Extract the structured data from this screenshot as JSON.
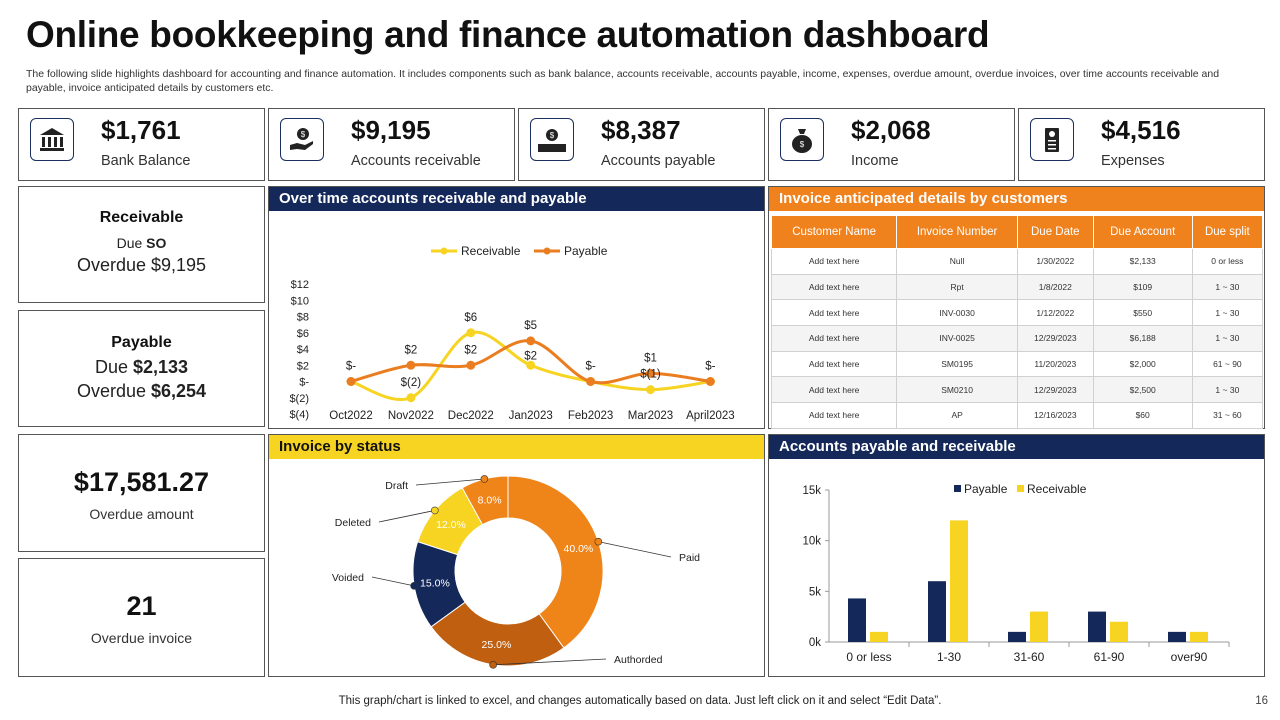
{
  "header": {
    "title": "Online bookkeeping and finance automation dashboard",
    "subtitle": "The following slide highlights dashboard for accounting and finance automation. It includes components such as bank balance, accounts receivable, accounts payable, income, expenses, overdue amount, overdue invoices, over time accounts receivable and payable, invoice anticipated details by customers etc."
  },
  "kpis": [
    {
      "value": "$1,761",
      "label": "Bank Balance",
      "icon": "bank-icon"
    },
    {
      "value": "$9,195",
      "label": "Accounts receivable",
      "icon": "hand-coin-icon"
    },
    {
      "value": "$8,387",
      "label": "Accounts payable",
      "icon": "cash-payment-icon"
    },
    {
      "value": "$2,068",
      "label": "Income",
      "icon": "money-bag-icon"
    },
    {
      "value": "$4,516",
      "label": "Expenses",
      "icon": "receipt-icon"
    }
  ],
  "receivable": {
    "title": "Receivable",
    "due_label": "Due ",
    "due_value": "SO",
    "overdue_label": "Overdue $9,195"
  },
  "payable": {
    "title": "Payable",
    "due_label": "Due ",
    "due_value": "$2,133",
    "overdue_label": "Overdue ",
    "overdue_value": "$6,254"
  },
  "overdue_amount": {
    "value": "$17,581.27",
    "label": "Overdue amount"
  },
  "overdue_invoice": {
    "value": "21",
    "label": "Overdue invoice"
  },
  "panels": {
    "line_title": "Over time accounts receivable and payable",
    "table_title": "Invoice anticipated details by customers",
    "donut_title": "Invoice by status",
    "bar_title": "Accounts payable and receivable"
  },
  "invoice_table": {
    "headers": [
      "Customer Name",
      "Invoice Number",
      "Due Date",
      "Due Account",
      "Due split"
    ],
    "rows": [
      [
        "Add text here",
        "Null",
        "1/30/2022",
        "$2,133",
        "0 or less"
      ],
      [
        "Add text here",
        "Rpt",
        "1/8/2022",
        "$109",
        "1 ~ 30"
      ],
      [
        "Add text here",
        "INV-0030",
        "1/12/2022",
        "$550",
        "1 ~ 30"
      ],
      [
        "Add text here",
        "INV-0025",
        "12/29/2023",
        "$6,188",
        "1 ~ 30"
      ],
      [
        "Add text here",
        "SM0195",
        "11/20/2023",
        "$2,000",
        "61 ~ 90"
      ],
      [
        "Add text here",
        "SM0210",
        "12/29/2023",
        "$2,500",
        "1 ~ 30"
      ],
      [
        "Add text here",
        "AP",
        "12/16/2023",
        "$60",
        "31 ~ 60"
      ]
    ]
  },
  "colors": {
    "navy": "#14285a",
    "orange": "#f0821e",
    "yellow": "#f7d322",
    "dark_orange": "#c0600c"
  },
  "chart_data": [
    {
      "type": "line",
      "title": "Over time accounts receivable and payable",
      "categories": [
        "Oct2022",
        "Nov2022",
        "Dec2022",
        "Jan2023",
        "Feb2023",
        "Mar2023",
        "April2023"
      ],
      "series": [
        {
          "name": "Receivable",
          "color": "#f7d322",
          "values": [
            0,
            -2,
            6,
            2,
            0,
            -1,
            0
          ],
          "labels": [
            "",
            "$(2)",
            "$6",
            "$2",
            "",
            "$(1)",
            ""
          ]
        },
        {
          "name": "Payable",
          "color": "#ea7d1f",
          "values": [
            0,
            2,
            2,
            5,
            0,
            1,
            0
          ],
          "labels": [
            "$-",
            "$2",
            "$2",
            "$5",
            "$-",
            "$1",
            "$-"
          ]
        }
      ],
      "yticks": [
        "$12",
        "$10",
        "$8",
        "$6",
        "$4",
        "$2",
        "$-",
        "$(2)",
        "$(4)"
      ],
      "ylim": [
        -4,
        12
      ]
    },
    {
      "type": "pie",
      "title": "Invoice by status",
      "slices": [
        {
          "label": "Paid",
          "value": 40.0,
          "text": "40.0%",
          "color": "#ef8419"
        },
        {
          "label": "Authorded",
          "value": 25.0,
          "text": "25.0%",
          "color": "#bf5f0f"
        },
        {
          "label": "Voided",
          "value": 15.0,
          "text": "15.0%",
          "color": "#14285a"
        },
        {
          "label": "Deleted",
          "value": 12.0,
          "text": "12.0%",
          "color": "#f7d322"
        },
        {
          "label": "Draft",
          "value": 8.0,
          "text": "8.0%",
          "color": "#ef8419"
        }
      ]
    },
    {
      "type": "bar",
      "title": "Accounts payable and receivable",
      "categories": [
        "0 or less",
        "1-30",
        "31-60",
        "61-90",
        "over90"
      ],
      "series": [
        {
          "name": "Payable",
          "color": "#14285a",
          "values": [
            4300,
            6000,
            1000,
            3000,
            1000
          ]
        },
        {
          "name": "Receivable",
          "color": "#f7d322",
          "values": [
            1000,
            12000,
            3000,
            2000,
            1000
          ]
        }
      ],
      "yticks": [
        "15k",
        "10k",
        "5k",
        "0k"
      ],
      "ylim": [
        0,
        15000
      ]
    }
  ],
  "footer": {
    "note": "This graph/chart is linked to excel,  and changes automatically based on data. Just left click on it and select “Edit Data”.",
    "page": "16"
  }
}
